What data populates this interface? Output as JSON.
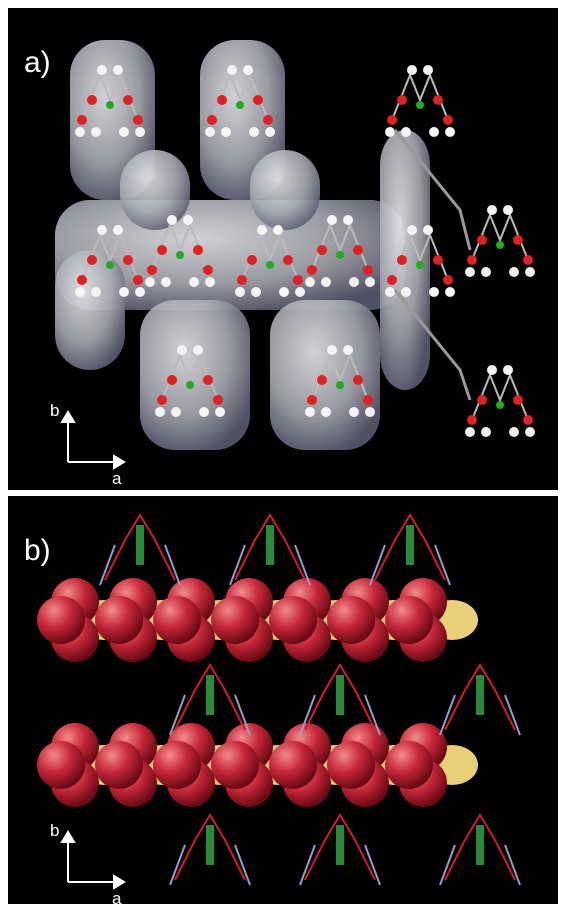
{
  "panels": [
    {
      "label": "a)",
      "axes": {
        "vertical": "b",
        "horizontal": "a"
      }
    },
    {
      "label": "b)",
      "axes": {
        "vertical": "b",
        "horizontal": "a"
      }
    }
  ]
}
